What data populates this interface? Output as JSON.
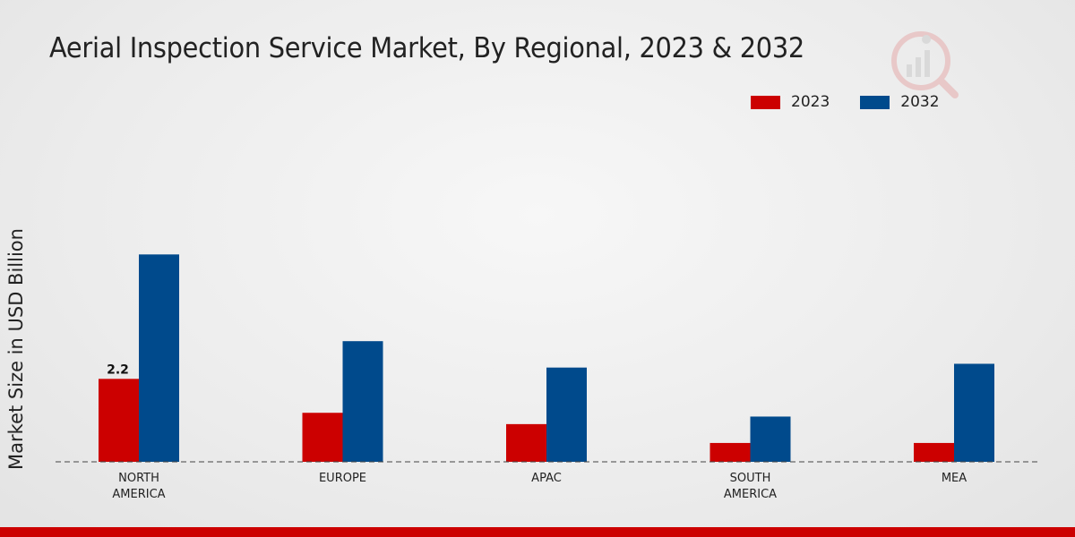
{
  "chart_data": {
    "type": "bar",
    "title": "Aerial Inspection Service Market, By Regional, 2023 & 2032",
    "ylabel": "Market Size in USD Billion",
    "xlabel": "",
    "categories": [
      [
        "NORTH",
        "AMERICA"
      ],
      [
        "EUROPE"
      ],
      [
        "APAC"
      ],
      [
        "SOUTH",
        "AMERICA"
      ],
      [
        "MEA"
      ]
    ],
    "series": [
      {
        "name": "2023",
        "color": "#cc0000",
        "values": [
          2.2,
          1.3,
          1.0,
          0.5,
          0.5
        ]
      },
      {
        "name": "2032",
        "color": "#004a8c",
        "values": [
          5.5,
          3.2,
          2.5,
          1.2,
          2.6
        ]
      }
    ],
    "data_labels": [
      {
        "series": 0,
        "index": 0,
        "text": "2.2"
      }
    ],
    "ylim": [
      0,
      9.4
    ],
    "legend_position": "top-right",
    "grid": false
  }
}
